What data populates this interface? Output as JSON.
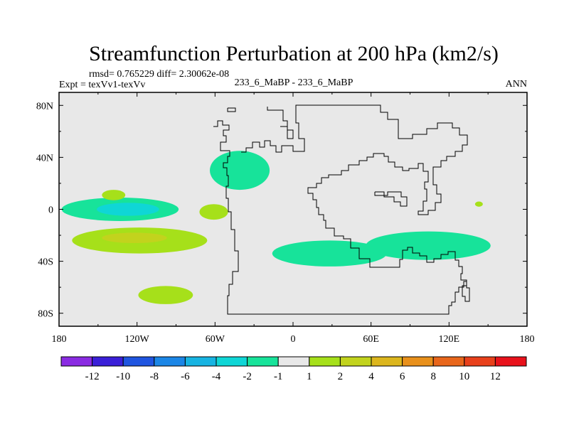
{
  "chart_data": {
    "type": "contour",
    "title": "Streamfunction Perturbation at 200 hPa (km2/s)",
    "subtitle_stats": "rmsd= 0.765229 diff= 2.30062e-08",
    "subtitle_left": "Expt = texVv1-texVv",
    "subtitle_center": "233_6_MaBP - 233_6_MaBP",
    "subtitle_right": "ANN",
    "x_axis": {
      "range": [
        -180,
        180
      ],
      "ticks": [
        {
          "value": -180,
          "label": "180"
        },
        {
          "value": -120,
          "label": "120W"
        },
        {
          "value": -60,
          "label": "60W"
        },
        {
          "value": 0,
          "label": "0"
        },
        {
          "value": 60,
          "label": "60E"
        },
        {
          "value": 120,
          "label": "120E"
        },
        {
          "value": 180,
          "label": "180"
        }
      ]
    },
    "y_axis": {
      "range": [
        -90,
        90
      ],
      "ticks": [
        {
          "value": 80,
          "label": "80N"
        },
        {
          "value": 40,
          "label": "40N"
        },
        {
          "value": 0,
          "label": "0"
        },
        {
          "value": -40,
          "label": "40S"
        },
        {
          "value": -80,
          "label": "80S"
        }
      ]
    },
    "colorbar": {
      "colors": [
        "#8a2be2",
        "#3a1fd8",
        "#1f55e0",
        "#1b86e6",
        "#17b4e2",
        "#0fd6d6",
        "#17e39a",
        "#e8e8e8",
        "#a6e01a",
        "#c2d31d",
        "#dcb61d",
        "#e8901b",
        "#e8661b",
        "#e8401b",
        "#e8121b"
      ],
      "labels": [
        "-12",
        "-10",
        "-8",
        "-6",
        "-4",
        "-2",
        "-1",
        "1",
        "2",
        "4",
        "6",
        "8",
        "10",
        "12"
      ]
    },
    "regions": [
      {
        "lon": 28,
        "lat": -34,
        "rlon": 44,
        "rlat": 10,
        "value": -1.5
      },
      {
        "lon": 104,
        "lat": -28,
        "rlon": 48,
        "rlat": 11,
        "value": -1.5
      },
      {
        "lon": -133,
        "lat": 0,
        "rlon": 45,
        "rlat": 9,
        "value": -1.5
      },
      {
        "lon": -127,
        "lat": 0,
        "rlon": 24,
        "rlat": 5,
        "value": -2.5
      },
      {
        "lon": -41,
        "lat": 30,
        "rlon": 23,
        "rlat": 15,
        "value": -1.5
      },
      {
        "lon": -138,
        "lat": 11,
        "rlon": 9,
        "rlat": 4,
        "value": 1.5
      },
      {
        "lon": 143,
        "lat": 4,
        "rlon": 3,
        "rlat": 2,
        "value": 1.5
      },
      {
        "lon": -61,
        "lat": -2,
        "rlon": 11,
        "rlat": 6,
        "value": 1.5
      },
      {
        "lon": -118,
        "lat": -24,
        "rlon": 52,
        "rlat": 10,
        "value": 1.5
      },
      {
        "lon": -122,
        "lat": -22,
        "rlon": 25,
        "rlat": 4,
        "value": 3
      },
      {
        "lon": -98,
        "lat": -66,
        "rlon": 21,
        "rlat": 7,
        "value": 1.5
      }
    ]
  }
}
